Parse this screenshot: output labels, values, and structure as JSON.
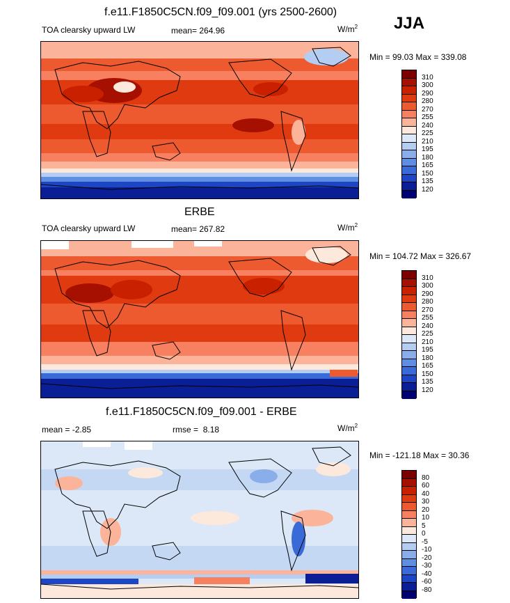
{
  "season": "JJA",
  "panels": [
    {
      "title": "f.e11.F1850C5CN.f09_f09.001 (yrs 2500-2600)",
      "left_label": "TOA clearsky upward LW",
      "stat_label": "mean=",
      "stat_value": "264.96",
      "unit": "W/m",
      "unit_exp": "2",
      "minmax": "Min =  99.03 Max = 339.08",
      "colorbar": [
        "310",
        "300",
        "290",
        "280",
        "270",
        "255",
        "240",
        "225",
        "210",
        "195",
        "180",
        "165",
        "150",
        "135",
        "120"
      ]
    },
    {
      "title": "ERBE",
      "left_label": "TOA clearsky upward LW",
      "stat_label": "mean=",
      "stat_value": "267.82",
      "unit": "W/m",
      "unit_exp": "2",
      "minmax": "Min = 104.72 Max = 326.67",
      "colorbar": [
        "310",
        "300",
        "290",
        "280",
        "270",
        "255",
        "240",
        "225",
        "210",
        "195",
        "180",
        "165",
        "150",
        "135",
        "120"
      ]
    },
    {
      "title": "f.e11.F1850C5CN.f09_f09.001 - ERBE",
      "left_label": "mean =  -2.85",
      "stat_label": "rmse =",
      "stat_value": "8.18",
      "unit": "W/m",
      "unit_exp": "2",
      "minmax": "Min = -121.18 Max =  30.36",
      "colorbar": [
        "80",
        "60",
        "40",
        "30",
        "20",
        "10",
        "5",
        "0",
        "-5",
        "-10",
        "-20",
        "-30",
        "-40",
        "-60",
        "-80"
      ]
    }
  ],
  "colors": {
    "abs_scale": [
      "#7a0000",
      "#a51000",
      "#c92000",
      "#e03a10",
      "#ee5a30",
      "#f78060",
      "#fbb49a",
      "#fde8dc",
      "#dce8f8",
      "#b4cdf2",
      "#8aaeea",
      "#5f8ee2",
      "#3a6ad8",
      "#1c46c4",
      "#0a1e96",
      "#000070"
    ],
    "diff_scale": [
      "#7a0000",
      "#a51000",
      "#c92000",
      "#e03a10",
      "#ee5a30",
      "#f78060",
      "#fbb49a",
      "#fde8dc",
      "#dce8f8",
      "#b4cdf2",
      "#8aaeea",
      "#5f8ee2",
      "#3a6ad8",
      "#1c46c4",
      "#0a1e96",
      "#000070"
    ]
  }
}
